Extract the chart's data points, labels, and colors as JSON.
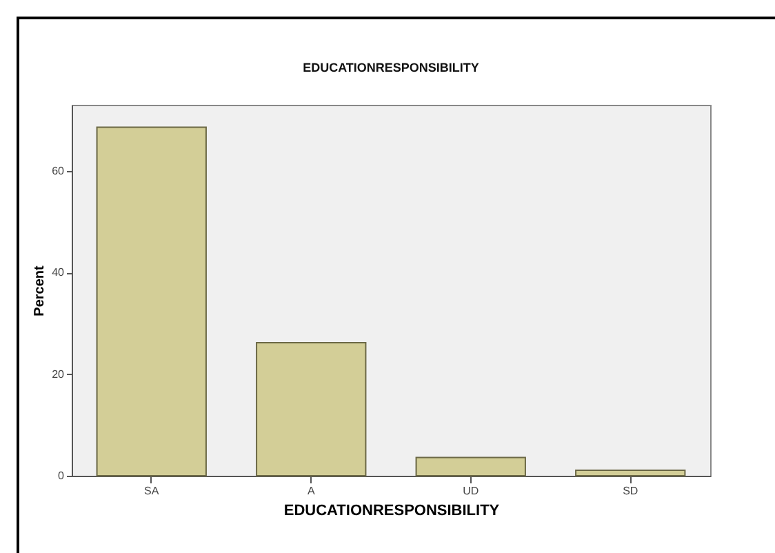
{
  "chart_data": {
    "type": "bar",
    "title": "EDUCATIONRESPONSIBILITY",
    "xlabel": "EDUCATIONRESPONSIBILITY",
    "ylabel": "Percent",
    "categories": [
      "SA",
      "A",
      "UD",
      "SD"
    ],
    "values": [
      68.6,
      26.2,
      3.6,
      1.1
    ],
    "color": "#d3ce97",
    "ylim": [
      0,
      73
    ],
    "yticks": [
      0,
      20,
      40,
      60
    ],
    "grid": false
  }
}
